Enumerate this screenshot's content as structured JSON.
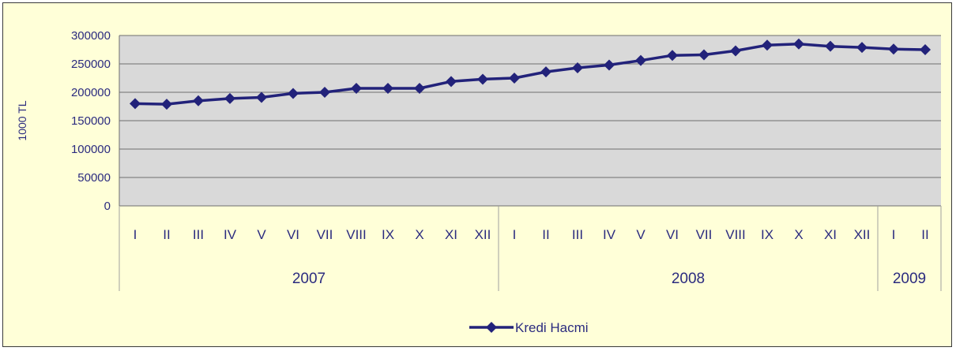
{
  "chart_data": {
    "type": "line",
    "ylabel": "1000 TL",
    "ylim": [
      0,
      300000
    ],
    "yticks": [
      0,
      50000,
      100000,
      150000,
      200000,
      250000,
      300000
    ],
    "grid": true,
    "legend_position": "bottom",
    "months": [
      "I",
      "II",
      "III",
      "IV",
      "V",
      "VI",
      "VII",
      "VIII",
      "IX",
      "X",
      "XI",
      "XII",
      "I",
      "II",
      "III",
      "IV",
      "V",
      "VI",
      "VII",
      "VIII",
      "IX",
      "X",
      "XI",
      "XII",
      "I",
      "II"
    ],
    "years": [
      {
        "label": "2007",
        "count": 12
      },
      {
        "label": "2008",
        "count": 12
      },
      {
        "label": "2009",
        "count": 2
      }
    ],
    "series": [
      {
        "name": "Kredi Hacmi",
        "color": "#22227a",
        "values": [
          180000,
          179000,
          185000,
          189000,
          191000,
          198000,
          200000,
          207000,
          207000,
          207000,
          219000,
          223000,
          225000,
          236000,
          243000,
          248000,
          256000,
          265000,
          266000,
          273000,
          283000,
          285000,
          281000,
          279000,
          276000,
          275000
        ]
      }
    ]
  }
}
